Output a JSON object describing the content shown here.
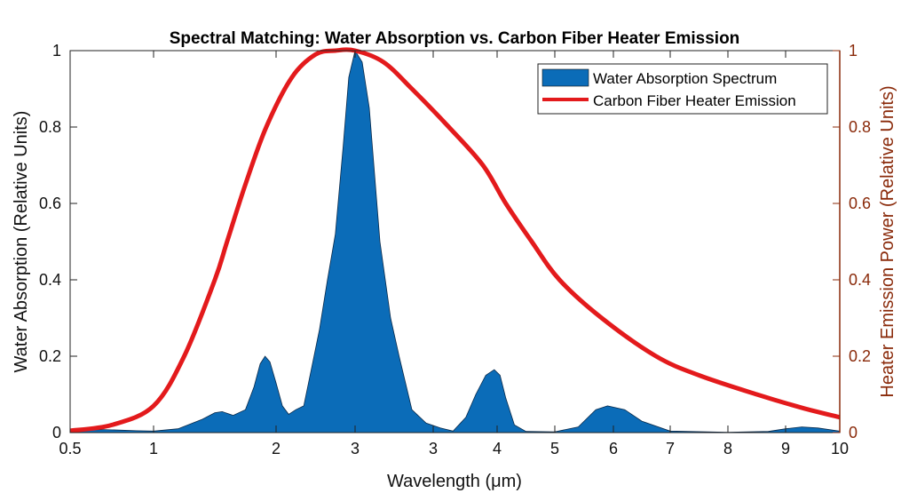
{
  "chart_data": {
    "type": "area+line",
    "title": "Spectral Matching: Water Absorption vs. Carbon Fiber Heater Emission",
    "xlabel": "Wavelength (μm)",
    "ylabel_left": "Water Absorption (Relative Units)",
    "ylabel_right": "Heater Emission Power (Relative Units)",
    "x_tick_labels": [
      "0.5",
      "1",
      "2",
      "3",
      "3",
      "4",
      "5",
      "6",
      "7",
      "8",
      "9",
      "10"
    ],
    "y_left_ticks": [
      "0",
      "0.2",
      "0.4",
      "0.6",
      "0.8",
      "1"
    ],
    "y_right_ticks": [
      "0",
      "0.2",
      "0.4",
      "0.6",
      "0.8",
      "1"
    ],
    "xlim": [
      0.5,
      10
    ],
    "ylim_left": [
      0,
      1
    ],
    "ylim_right": [
      0,
      1
    ],
    "grid": false,
    "legend_position": "top-right",
    "colors": {
      "water": "#0b6cb8",
      "heater": "#e31a1c",
      "right_axis": "#8a2a0a"
    },
    "series": [
      {
        "name": "Water Absorption Spectrum",
        "kind": "area",
        "axis": "left",
        "x": [
          0.5,
          0.7,
          0.9,
          1.0,
          1.2,
          1.4,
          1.5,
          1.56,
          1.65,
          1.75,
          1.82,
          1.87,
          1.91,
          1.95,
          2.0,
          2.08,
          2.16,
          2.25,
          2.35,
          2.45,
          2.55,
          2.65,
          2.75,
          2.85,
          2.92,
          3.0,
          3.05,
          3.1,
          3.175,
          3.25,
          3.31,
          3.4,
          3.5,
          3.6,
          3.69,
          3.78,
          3.85,
          3.92,
          3.98,
          4.05,
          4.15,
          4.3,
          4.5,
          5.0,
          5.4,
          5.7,
          5.9,
          6.2,
          6.5,
          7.0,
          8.0,
          8.7,
          9.0,
          9.3,
          9.6,
          10
        ],
        "y": [
          0.005,
          0.008,
          0.005,
          0.004,
          0.01,
          0.035,
          0.052,
          0.055,
          0.045,
          0.06,
          0.12,
          0.18,
          0.2,
          0.185,
          0.13,
          0.07,
          0.048,
          0.06,
          0.07,
          0.17,
          0.27,
          0.4,
          0.52,
          0.75,
          0.93,
          1.0,
          0.97,
          0.85,
          0.5,
          0.3,
          0.2,
          0.06,
          0.025,
          0.012,
          0.004,
          0.04,
          0.1,
          0.15,
          0.165,
          0.15,
          0.09,
          0.02,
          0.003,
          0.002,
          0.015,
          0.06,
          0.07,
          0.06,
          0.03,
          0.004,
          0.001,
          0.003,
          0.01,
          0.015,
          0.012,
          0.004
        ]
      },
      {
        "name": "Carbon Fiber Heater Emission",
        "kind": "line",
        "axis": "right",
        "x": [
          0.5,
          0.75,
          1.0,
          1.25,
          1.5,
          1.6,
          1.75,
          1.92,
          2.2,
          2.5,
          2.75,
          3.0,
          3.2,
          3.4,
          3.66,
          3.9,
          4.15,
          4.6,
          5.08,
          5.8,
          6.75,
          7.5,
          8.5,
          9.3,
          10
        ],
        "y": [
          0.005,
          0.02,
          0.07,
          0.2,
          0.4,
          0.5,
          0.65,
          0.8,
          0.93,
          0.99,
          1.0,
          1.0,
          0.97,
          0.9,
          0.8,
          0.7,
          0.6,
          0.5,
          0.4,
          0.3,
          0.2,
          0.15,
          0.1,
          0.065,
          0.04
        ]
      }
    ]
  }
}
